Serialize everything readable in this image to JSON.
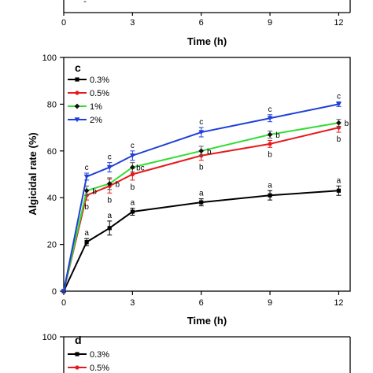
{
  "chart_data": [
    {
      "panel": "",
      "type": "line",
      "title": "",
      "xlabel": "Time (h)",
      "ylabel": "",
      "x_ticks": [
        "0",
        "3",
        "6",
        "9",
        "12"
      ],
      "xlim": [
        0,
        12.5
      ],
      "y_tick_fragment": "-",
      "partial": true
    },
    {
      "panel": "c",
      "type": "line",
      "title": "",
      "xlabel": "Time (h)",
      "ylabel": "Algicidal rate (%)",
      "xlim": [
        0,
        12.5
      ],
      "ylim": [
        0,
        100
      ],
      "x_ticks": [
        "0",
        "3",
        "6",
        "9",
        "12"
      ],
      "y_ticks": [
        "0",
        "20",
        "40",
        "60",
        "80",
        "100"
      ],
      "x": [
        0,
        1,
        2,
        3,
        6,
        9,
        12
      ],
      "legend_position": "top-left",
      "series": [
        {
          "name": "0.3%",
          "color": "#000000",
          "marker": "square",
          "values": [
            0,
            21,
            27,
            34,
            38,
            41,
            43
          ],
          "errors": [
            0,
            1.5,
            3,
            1.5,
            1.5,
            2,
            2
          ],
          "labels": [
            "",
            "a",
            "a",
            "a",
            "a",
            "a",
            "a"
          ]
        },
        {
          "name": "0.5%",
          "color": "#e8191c",
          "marker": "circle",
          "values": [
            0,
            41,
            45,
            50,
            58,
            63,
            70
          ],
          "errors": [
            0,
            2,
            3,
            2.5,
            2,
            1.5,
            2
          ],
          "labels": [
            "",
            "b",
            "b",
            "b",
            "b",
            "b",
            "b"
          ]
        },
        {
          "name": "1%",
          "color": "#33dd33",
          "marker": "diamond",
          "values": [
            0,
            43,
            46,
            53,
            60,
            67,
            72
          ],
          "errors": [
            0,
            2,
            2.5,
            2,
            2,
            1.5,
            1.5
          ],
          "labels": [
            "",
            "b",
            "b",
            "bc",
            "b",
            "b",
            "b"
          ]
        },
        {
          "name": "2%",
          "color": "#1f3fd8",
          "marker": "triangle-down",
          "values": [
            0,
            49,
            53,
            58,
            68,
            74,
            80
          ],
          "errors": [
            0,
            1.5,
            2,
            2,
            2,
            1.5,
            1
          ],
          "labels": [
            "",
            "c",
            "c",
            "c",
            "c",
            "c",
            "c"
          ]
        }
      ]
    },
    {
      "panel": "d",
      "type": "line",
      "title": "",
      "xlabel": "",
      "ylabel": "",
      "y_ticks": [
        "100"
      ],
      "partial": true,
      "legend_position": "top-left",
      "series": [
        {
          "name": "0.3%",
          "color": "#000000",
          "marker": "square",
          "values": []
        },
        {
          "name": "0.5%",
          "color": "#e8191c",
          "marker": "circle",
          "values": []
        }
      ]
    }
  ]
}
